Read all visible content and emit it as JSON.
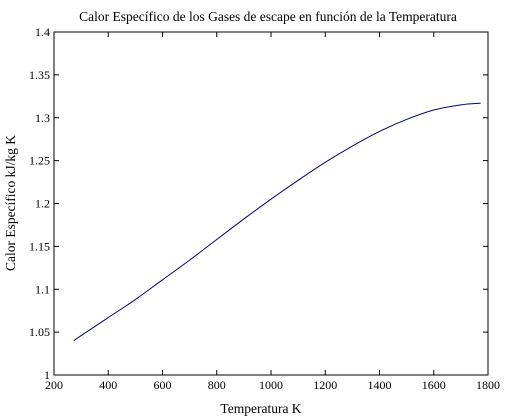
{
  "chart_data": {
    "type": "line",
    "title": "Calor Específico de los Gases de escape en función de la Temperatura",
    "xlabel": "Temperatura K",
    "ylabel": "Calor Específico kJ/kg K",
    "xlim": [
      200,
      1800
    ],
    "ylim": [
      1.0,
      1.4
    ],
    "xticks": [
      "200",
      "400",
      "600",
      "800",
      "1000",
      "1200",
      "1400",
      "1600",
      "1800"
    ],
    "yticks": [
      "1",
      "1.05",
      "1.1",
      "1.15",
      "1.2",
      "1.25",
      "1.3",
      "1.35",
      "1.4"
    ],
    "grid": false,
    "line_color": "#00008b",
    "series": [
      {
        "x": [
          273,
          300,
          400,
          500,
          600,
          700,
          800,
          900,
          1000,
          1100,
          1200,
          1300,
          1400,
          1500,
          1600,
          1700,
          1773
        ],
        "values": [
          1.04,
          1.046,
          1.067,
          1.088,
          1.111,
          1.134,
          1.158,
          1.182,
          1.205,
          1.227,
          1.248,
          1.267,
          1.284,
          1.298,
          1.309,
          1.315,
          1.317
        ]
      }
    ]
  }
}
